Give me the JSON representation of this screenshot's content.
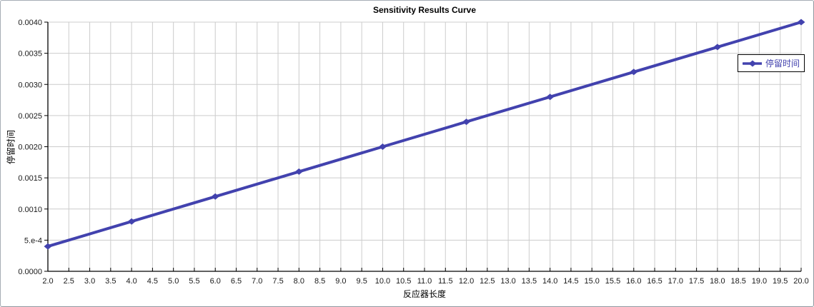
{
  "window": {
    "background": "#ffffff",
    "frame_border": "#a6adb5"
  },
  "chart_data": {
    "type": "line",
    "title": "Sensitivity Results Curve",
    "xlabel": "反应器长度",
    "ylabel": "停留时间",
    "grid": true,
    "legend": {
      "position": "top-right",
      "entries": [
        {
          "label": "停留时间",
          "color": "#4242ae",
          "marker": "diamond"
        }
      ]
    },
    "series": [
      {
        "name": "停留时间",
        "color": "#4242ae",
        "marker": "diamond",
        "x": [
          2,
          4,
          6,
          8,
          10,
          12,
          14,
          16,
          18,
          20
        ],
        "y": [
          0.0004,
          0.0008,
          0.0012,
          0.0016,
          0.002,
          0.0024,
          0.0028,
          0.0032,
          0.0036,
          0.004
        ]
      }
    ],
    "x_axis": {
      "min": 2.0,
      "max": 20.0,
      "tick_step": 0.5,
      "tick_labels": [
        "2.0",
        "2.5",
        "3.0",
        "3.5",
        "4.0",
        "4.5",
        "5.0",
        "5.5",
        "6.0",
        "6.5",
        "7.0",
        "7.5",
        "8.0",
        "8.5",
        "9.0",
        "9.5",
        "10.0",
        "10.5",
        "11.0",
        "11.5",
        "12.0",
        "12.5",
        "13.0",
        "13.5",
        "14.0",
        "14.5",
        "15.0",
        "15.5",
        "16.0",
        "16.5",
        "17.0",
        "17.5",
        "18.0",
        "18.5",
        "19.0",
        "19.5",
        "20.0"
      ]
    },
    "y_axis": {
      "min": 0.0,
      "max": 0.004,
      "tick_values": [
        0.0,
        0.0005,
        0.001,
        0.0015,
        0.002,
        0.0025,
        0.003,
        0.0035,
        0.004
      ],
      "tick_labels": [
        "0.0000",
        "5.e-4",
        "0.0010",
        "0.0015",
        "0.0020",
        "0.0025",
        "0.0030",
        "0.0035",
        "0.0040"
      ]
    },
    "colors": {
      "gridline": "#cccccc",
      "axis": "#000000",
      "tick_label": "#1a1a1a"
    }
  }
}
